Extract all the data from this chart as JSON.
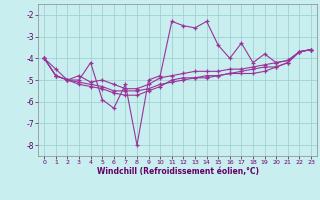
{
  "xlabel": "Windchill (Refroidissement éolien,°C)",
  "background_color": "#c8eef0",
  "line_color": "#993399",
  "x": [
    0,
    1,
    2,
    3,
    4,
    5,
    6,
    7,
    8,
    9,
    10,
    11,
    12,
    13,
    14,
    15,
    16,
    17,
    18,
    19,
    20,
    21,
    22,
    23
  ],
  "series1": [
    -4.0,
    -4.5,
    -5.0,
    -5.0,
    -4.2,
    -5.9,
    -6.3,
    -5.2,
    -8.0,
    -5.0,
    -4.8,
    -2.3,
    -2.5,
    -2.6,
    -2.3,
    -3.4,
    -4.0,
    -3.3,
    -4.2,
    -3.8,
    -4.2,
    -4.1,
    -3.7,
    -3.6
  ],
  "series2": [
    -4.0,
    -4.8,
    -5.0,
    -4.8,
    -5.1,
    -5.0,
    -5.2,
    -5.4,
    -5.4,
    -5.2,
    -4.9,
    -4.8,
    -4.7,
    -4.6,
    -4.6,
    -4.6,
    -4.5,
    -4.5,
    -4.4,
    -4.3,
    -4.2,
    -4.1,
    -3.7,
    -3.6
  ],
  "series3": [
    -4.0,
    -4.8,
    -5.0,
    -5.1,
    -5.2,
    -5.3,
    -5.5,
    -5.5,
    -5.5,
    -5.4,
    -5.2,
    -5.1,
    -5.0,
    -4.9,
    -4.9,
    -4.8,
    -4.7,
    -4.6,
    -4.5,
    -4.4,
    -4.4,
    -4.2,
    -3.7,
    -3.6
  ],
  "series4": [
    -4.0,
    -4.8,
    -5.0,
    -5.2,
    -5.3,
    -5.4,
    -5.6,
    -5.7,
    -5.7,
    -5.5,
    -5.3,
    -5.0,
    -4.9,
    -4.9,
    -4.8,
    -4.8,
    -4.7,
    -4.7,
    -4.7,
    -4.6,
    -4.4,
    -4.2,
    -3.7,
    -3.6
  ],
  "ylim": [
    -8.5,
    -1.5
  ],
  "xlim": [
    -0.5,
    23.5
  ],
  "yticks": [
    -8,
    -7,
    -6,
    -5,
    -4,
    -3,
    -2
  ],
  "xticks": [
    0,
    1,
    2,
    3,
    4,
    5,
    6,
    7,
    8,
    9,
    10,
    11,
    12,
    13,
    14,
    15,
    16,
    17,
    18,
    19,
    20,
    21,
    22,
    23
  ],
  "grid_color": "#99cccc",
  "axis_bg": "#c8eef0",
  "spine_color": "#888888",
  "tick_color": "#660066",
  "xlabel_color": "#660066"
}
